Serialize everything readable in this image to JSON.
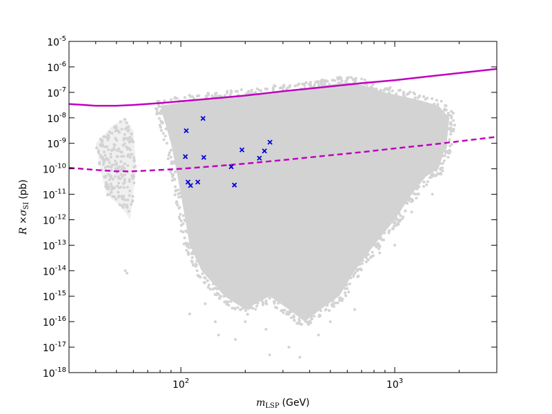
{
  "chart_data": {
    "type": "scatter",
    "title": "",
    "xlabel": {
      "symbol": "m",
      "subscript": "LSP",
      "unit": "(GeV)"
    },
    "ylabel": {
      "prefix": "R ×",
      "symbol": "σ",
      "subscript": "SI",
      "unit": "(pb)"
    },
    "xscale": "log",
    "yscale": "log",
    "xlim": [
      30,
      3000
    ],
    "ylim": [
      1e-18,
      1e-05
    ],
    "x_ticks": [
      {
        "value": 100,
        "base": "10",
        "exp": "2"
      },
      {
        "value": 1000,
        "base": "10",
        "exp": "3"
      }
    ],
    "y_ticks": [
      {
        "value": 1e-18,
        "base": "10",
        "exp": "-18"
      },
      {
        "value": 1e-17,
        "base": "10",
        "exp": "-17"
      },
      {
        "value": 1e-16,
        "base": "10",
        "exp": "-16"
      },
      {
        "value": 1e-15,
        "base": "10",
        "exp": "-15"
      },
      {
        "value": 1e-14,
        "base": "10",
        "exp": "-14"
      },
      {
        "value": 1e-13,
        "base": "10",
        "exp": "-13"
      },
      {
        "value": 1e-12,
        "base": "10",
        "exp": "-12"
      },
      {
        "value": 1e-11,
        "base": "10",
        "exp": "-11"
      },
      {
        "value": 1e-10,
        "base": "10",
        "exp": "-10"
      },
      {
        "value": 1e-09,
        "base": "10",
        "exp": "-9"
      },
      {
        "value": 1e-08,
        "base": "10",
        "exp": "-8"
      },
      {
        "value": 1e-07,
        "base": "10",
        "exp": "-7"
      },
      {
        "value": 1e-06,
        "base": "10",
        "exp": "-6"
      },
      {
        "value": 1e-05,
        "base": "10",
        "exp": "-5"
      }
    ],
    "grid": false,
    "colors": {
      "scan_points": "#d3d3d3",
      "highlighted_points": "#0000dd",
      "limit_curves": "#bf00bf"
    },
    "scan_cloud": {
      "description": "dense grey scan points",
      "outline": [
        [
          80,
          3e-08
        ],
        [
          120,
          5e-08
        ],
        [
          200,
          8e-08
        ],
        [
          400,
          1.5e-07
        ],
        [
          600,
          2.5e-07
        ],
        [
          700,
          2e-07
        ],
        [
          900,
          1e-07
        ],
        [
          1300,
          5e-08
        ],
        [
          1600,
          3e-08
        ],
        [
          1800,
          1e-08
        ],
        [
          1750,
          1e-09
        ],
        [
          1600,
          1e-10
        ],
        [
          1400,
          5e-11
        ],
        [
          1200,
          1e-11
        ],
        [
          1000,
          1e-12
        ],
        [
          800,
          1e-13
        ],
        [
          650,
          1e-14
        ],
        [
          550,
          1e-15
        ],
        [
          450,
          3e-16
        ],
        [
          380,
          1e-16
        ],
        [
          320,
          3e-16
        ],
        [
          260,
          1e-15
        ],
        [
          200,
          3e-16
        ],
        [
          160,
          1e-15
        ],
        [
          125,
          1e-14
        ],
        [
          110,
          1e-13
        ],
        [
          105,
          1e-12
        ],
        [
          100,
          1e-11
        ],
        [
          95,
          1e-10
        ],
        [
          90,
          1e-09
        ],
        [
          83,
          1e-08
        ]
      ],
      "side_cluster_outline": [
        [
          40,
          1e-09
        ],
        [
          48,
          5e-09
        ],
        [
          55,
          1e-08
        ],
        [
          60,
          3e-09
        ],
        [
          62,
          1e-10
        ],
        [
          60,
          1e-11
        ],
        [
          58,
          1e-12
        ],
        [
          53,
          3e-12
        ],
        [
          45,
          1e-11
        ],
        [
          42,
          1e-10
        ]
      ],
      "outliers": [
        [
          55,
          1e-14
        ],
        [
          56,
          8e-15
        ],
        [
          110,
          2e-16
        ],
        [
          150,
          3e-17
        ],
        [
          260,
          5e-18
        ],
        [
          360,
          4e-18
        ],
        [
          440,
          3e-17
        ],
        [
          200,
          1e-16
        ],
        [
          600,
          2e-15
        ],
        [
          850,
          5e-14
        ],
        [
          1000,
          1e-13
        ],
        [
          250,
          5e-17
        ],
        [
          180,
          2e-17
        ],
        [
          130,
          5e-16
        ],
        [
          500,
          1e-16
        ],
        [
          1200,
          2e-12
        ],
        [
          1500,
          1e-11
        ],
        [
          650,
          3e-16
        ],
        [
          320,
          1e-17
        ],
        [
          145,
          1e-16
        ]
      ]
    },
    "series": [
      {
        "marker": "x",
        "color": "#0000dd",
        "points": [
          {
            "x": 106,
            "y": 3.1e-09
          },
          {
            "x": 105,
            "y": 3e-10
          },
          {
            "x": 108,
            "y": 3e-11
          },
          {
            "x": 111,
            "y": 2.2e-11
          },
          {
            "x": 120,
            "y": 3e-11
          },
          {
            "x": 127,
            "y": 9.5e-09
          },
          {
            "x": 128,
            "y": 2.8e-10
          },
          {
            "x": 172,
            "y": 1.2e-10
          },
          {
            "x": 178,
            "y": 2.3e-11
          },
          {
            "x": 193,
            "y": 5.5e-10
          },
          {
            "x": 233,
            "y": 2.6e-10
          },
          {
            "x": 246,
            "y": 5e-10
          },
          {
            "x": 261,
            "y": 1.1e-09
          }
        ]
      },
      {
        "style": "solid",
        "color": "#bf00bf",
        "points": [
          {
            "x": 30,
            "y": 3.5e-08
          },
          {
            "x": 40,
            "y": 3e-08
          },
          {
            "x": 50,
            "y": 3e-08
          },
          {
            "x": 60,
            "y": 3.2e-08
          },
          {
            "x": 80,
            "y": 3.8e-08
          },
          {
            "x": 100,
            "y": 4.5e-08
          },
          {
            "x": 150,
            "y": 6e-08
          },
          {
            "x": 200,
            "y": 7.5e-08
          },
          {
            "x": 300,
            "y": 1.1e-07
          },
          {
            "x": 500,
            "y": 1.7e-07
          },
          {
            "x": 700,
            "y": 2.3e-07
          },
          {
            "x": 1000,
            "y": 3e-07
          },
          {
            "x": 1500,
            "y": 4.4e-07
          },
          {
            "x": 2000,
            "y": 5.7e-07
          },
          {
            "x": 3000,
            "y": 8.3e-07
          }
        ]
      },
      {
        "style": "dashed",
        "color": "#bf00bf",
        "points": [
          {
            "x": 30,
            "y": 1.1e-10
          },
          {
            "x": 40,
            "y": 9e-11
          },
          {
            "x": 50,
            "y": 8e-11
          },
          {
            "x": 60,
            "y": 8e-11
          },
          {
            "x": 70,
            "y": 8.5e-11
          },
          {
            "x": 80,
            "y": 9e-11
          },
          {
            "x": 100,
            "y": 1e-10
          },
          {
            "x": 150,
            "y": 1.3e-10
          },
          {
            "x": 200,
            "y": 1.6e-10
          },
          {
            "x": 300,
            "y": 2.2e-10
          },
          {
            "x": 500,
            "y": 3.4e-10
          },
          {
            "x": 700,
            "y": 4.5e-10
          },
          {
            "x": 1000,
            "y": 6.3e-10
          },
          {
            "x": 1500,
            "y": 9e-10
          },
          {
            "x": 2000,
            "y": 1.2e-09
          },
          {
            "x": 3000,
            "y": 1.8e-09
          }
        ]
      }
    ]
  }
}
